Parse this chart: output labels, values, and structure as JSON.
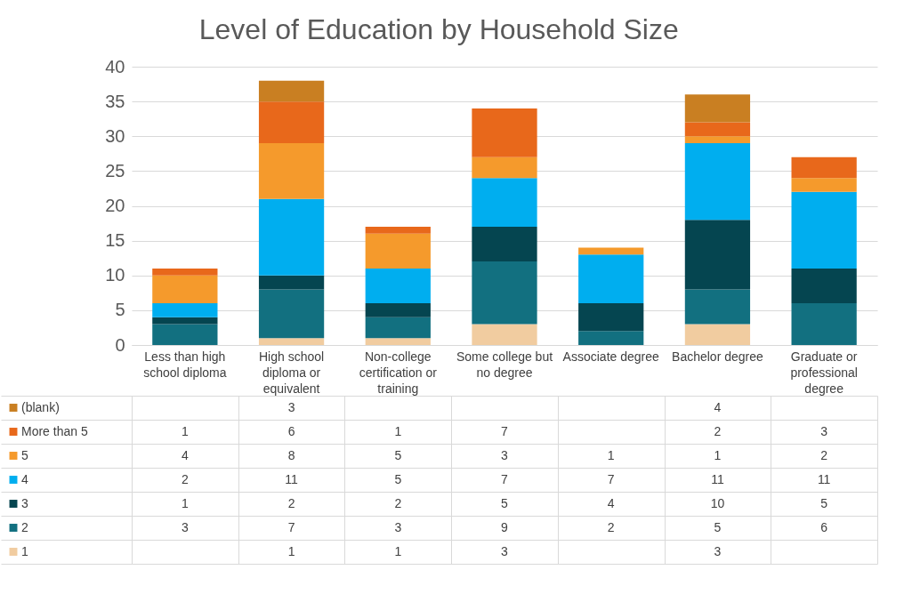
{
  "chart_data": {
    "type": "bar",
    "title": "Level of Education by Household Size",
    "stacked": true,
    "categories": [
      "Less than high school diploma",
      "High school diploma or equivalent",
      "Non-college certification or training",
      "Some college but no degree",
      "Associate degree",
      "Bachelor degree",
      "Graduate or professional degree"
    ],
    "series": [
      {
        "name": "1",
        "color": "#f1cca0",
        "values": [
          null,
          1,
          1,
          3,
          null,
          3,
          null
        ]
      },
      {
        "name": "2",
        "color": "#127080",
        "values": [
          3,
          7,
          3,
          9,
          2,
          5,
          6
        ]
      },
      {
        "name": "3",
        "color": "#054550",
        "values": [
          1,
          2,
          2,
          5,
          4,
          10,
          5
        ]
      },
      {
        "name": "4",
        "color": "#00aeef",
        "values": [
          2,
          11,
          5,
          7,
          7,
          11,
          11
        ]
      },
      {
        "name": "5",
        "color": "#f59a2c",
        "values": [
          4,
          8,
          5,
          3,
          1,
          1,
          2
        ]
      },
      {
        "name": "More than 5",
        "color": "#e8681b",
        "values": [
          1,
          6,
          1,
          7,
          null,
          2,
          3
        ]
      },
      {
        "name": "(blank)",
        "color": "#c97f22",
        "values": [
          null,
          3,
          null,
          null,
          null,
          4,
          null
        ]
      }
    ],
    "ylim": [
      0,
      40
    ],
    "yticks": [
      0,
      5,
      10,
      15,
      20,
      25,
      30,
      35,
      40
    ],
    "grid": "y",
    "data_labels": true,
    "legend": "bottom"
  }
}
